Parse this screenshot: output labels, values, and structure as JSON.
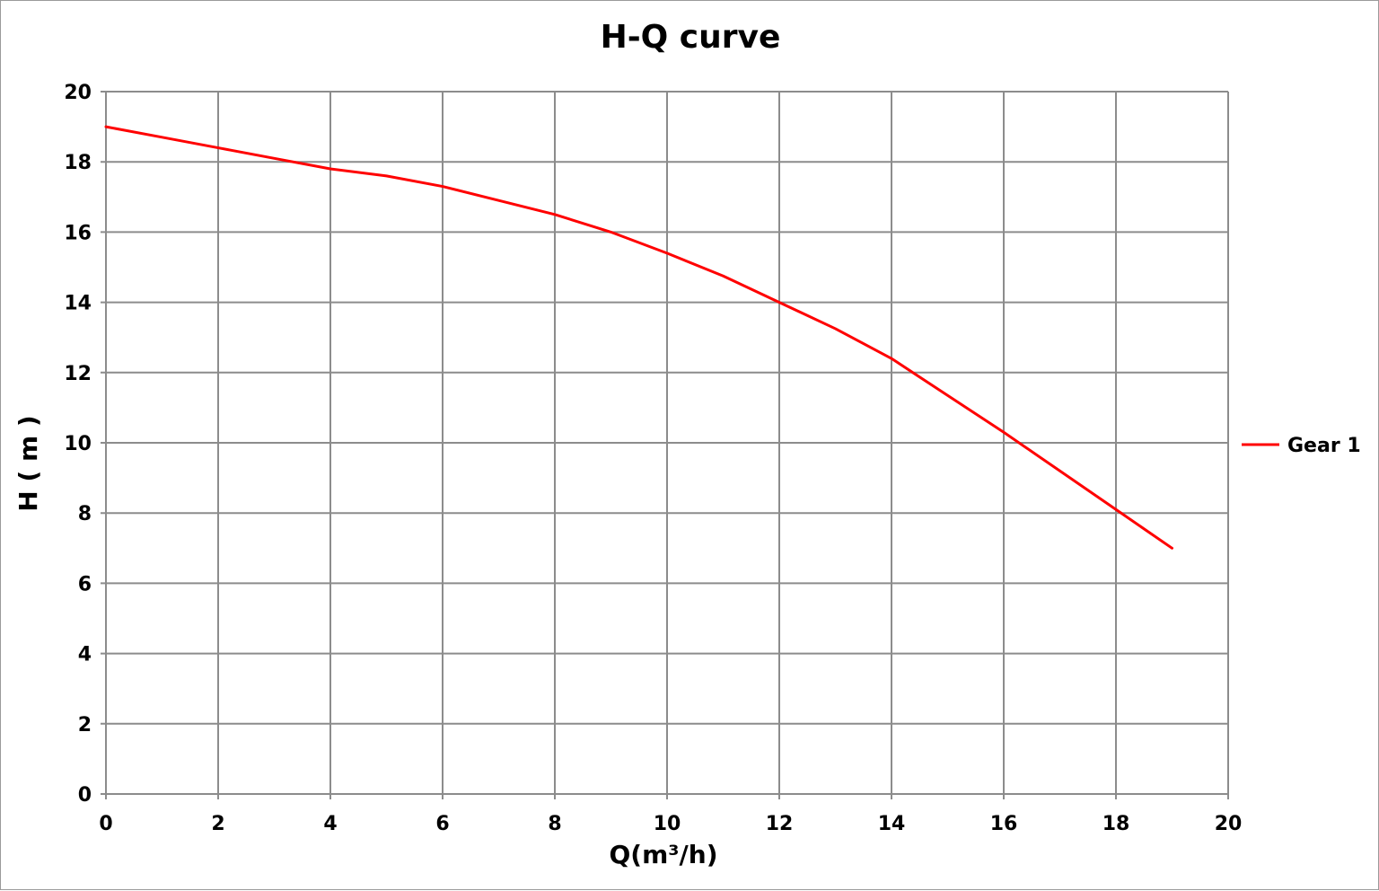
{
  "chart_data": {
    "type": "line",
    "title": "H-Q  curve",
    "xlabel": "Q(m³/h)",
    "ylabel": "H ( m )",
    "xlim": [
      0,
      20
    ],
    "ylim": [
      0,
      20
    ],
    "x_ticks": [
      "0",
      "2",
      "4",
      "6",
      "8",
      "10",
      "12",
      "14",
      "16",
      "18",
      "20"
    ],
    "y_ticks": [
      "0",
      "2",
      "4",
      "6",
      "8",
      "10",
      "12",
      "14",
      "16",
      "18",
      "20"
    ],
    "grid": true,
    "legend_position": "right",
    "series": [
      {
        "name": "Gear 1",
        "color": "#ff0000",
        "x": [
          0,
          1,
          2,
          3,
          4,
          5,
          6,
          7,
          8,
          9,
          10,
          11,
          12,
          13,
          14,
          15,
          16,
          17,
          18,
          19
        ],
        "y": [
          19.0,
          18.7,
          18.4,
          18.1,
          17.8,
          17.6,
          17.3,
          16.9,
          16.5,
          16.0,
          15.4,
          14.75,
          14.0,
          13.25,
          12.4,
          11.35,
          10.3,
          9.2,
          8.1,
          7.0
        ]
      }
    ]
  }
}
